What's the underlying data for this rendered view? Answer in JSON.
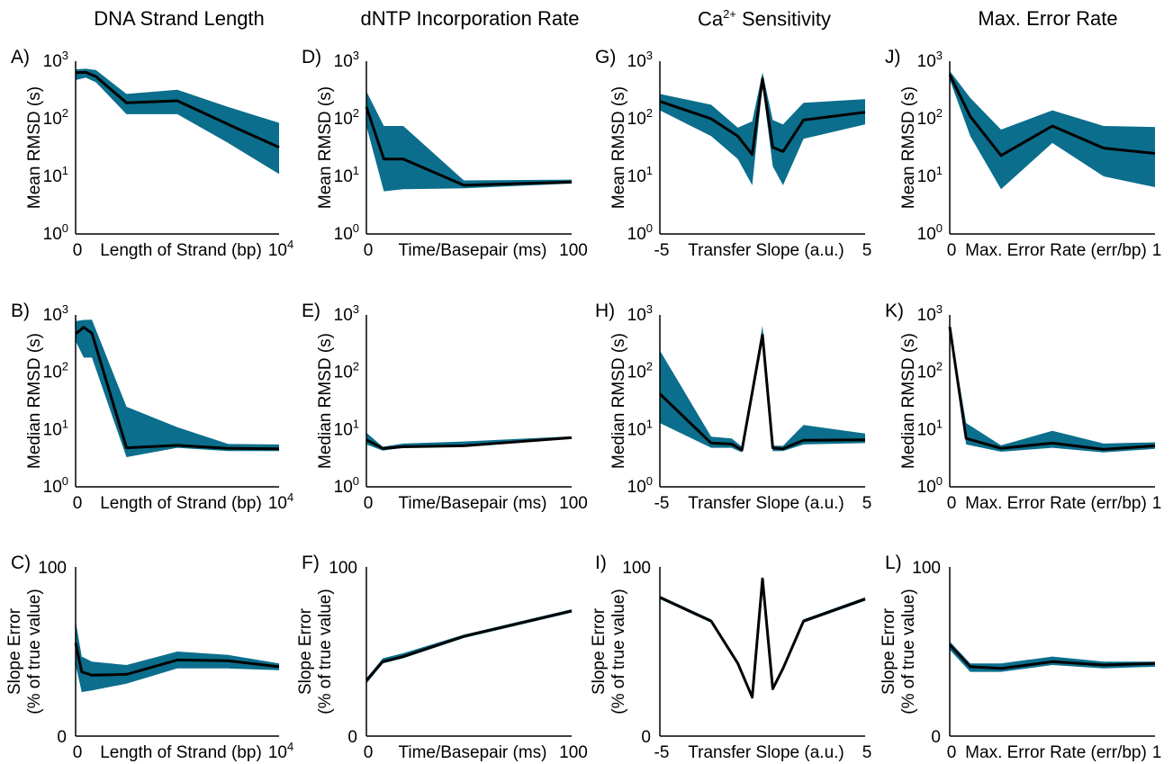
{
  "colors": {
    "band": "#0b6e8c",
    "line": "#000000",
    "axis": "#000000"
  },
  "columns": [
    {
      "title": "DNA Strand Length"
    },
    {
      "title": "dNTP Incorporation Rate"
    },
    {
      "title_main": "Ca",
      "title_sup": "2+",
      "title_rest": " Sensitivity"
    },
    {
      "title": "Max. Error Rate"
    }
  ],
  "chart_data": [
    {
      "panel": "A)",
      "type": "line",
      "xlabel": "Length of Strand (bp)",
      "ylabel": [
        "Mean RMSD (s)"
      ],
      "yscale": "log",
      "ylim": [
        1,
        1000
      ],
      "yticks": [
        "10^0",
        "10^1",
        "10^2",
        "10^3"
      ],
      "xtick_labels": [
        "0",
        "10^4"
      ],
      "xlim": [
        0,
        1
      ],
      "x": [
        0,
        0.05,
        0.1,
        0.25,
        0.5,
        0.75,
        1
      ],
      "y": [
        630,
        640,
        540,
        190,
        205,
        80,
        32
      ],
      "lower": [
        470,
        520,
        430,
        120,
        120,
        38,
        11
      ],
      "upper": [
        720,
        740,
        700,
        270,
        320,
        160,
        85
      ]
    },
    {
      "panel": "D)",
      "type": "line",
      "xlabel": "Time/Basepair (ms)",
      "ylabel": [
        "Mean RMSD (s)"
      ],
      "yscale": "log",
      "ylim": [
        1,
        1000
      ],
      "yticks": [
        "10^0",
        "10^1",
        "10^2",
        "10^3"
      ],
      "xtick_labels": [
        "0",
        "100"
      ],
      "xlim": [
        0,
        100
      ],
      "x": [
        0,
        8.5,
        18,
        47.5,
        100
      ],
      "y": [
        160,
        20,
        20,
        7,
        8
      ],
      "lower": [
        75,
        5.5,
        6,
        6.2,
        7.5
      ],
      "upper": [
        300,
        75,
        75,
        8.5,
        8.8
      ]
    },
    {
      "panel": "G)",
      "type": "line",
      "xlabel": "Transfer Slope (a.u.)",
      "ylabel": [
        "Mean RMSD (s)"
      ],
      "yscale": "log",
      "ylim": [
        1,
        1000
      ],
      "yticks": [
        "10^0",
        "10^1",
        "10^2",
        "10^3"
      ],
      "xtick_labels": [
        "-5",
        "5"
      ],
      "xlim": [
        -5,
        5
      ],
      "x": [
        -5,
        -2.5,
        -1.2,
        -0.5,
        0,
        0.5,
        1,
        2,
        5
      ],
      "y": [
        200,
        100,
        50,
        24,
        500,
        32,
        27,
        95,
        130
      ],
      "lower": [
        140,
        50,
        20,
        7,
        380,
        15,
        7,
        45,
        80
      ],
      "upper": [
        270,
        175,
        70,
        90,
        640,
        95,
        80,
        190,
        220
      ]
    },
    {
      "panel": "J)",
      "type": "line",
      "xlabel": "Max. Error Rate (err/bp)",
      "ylabel": [
        "Mean RMSD (s)"
      ],
      "yscale": "log",
      "ylim": [
        1,
        1000
      ],
      "yticks": [
        "10^0",
        "10^1",
        "10^2",
        "10^3"
      ],
      "xtick_labels": [
        "0",
        "1"
      ],
      "xlim": [
        0,
        1
      ],
      "x": [
        0,
        0.1,
        0.25,
        0.5,
        0.75,
        1
      ],
      "y": [
        580,
        110,
        23,
        75,
        31,
        25
      ],
      "lower": [
        480,
        50,
        6,
        38,
        10,
        6.5
      ],
      "upper": [
        680,
        230,
        65,
        140,
        75,
        72
      ]
    },
    {
      "panel": "B)",
      "type": "line",
      "xlabel": "Length of Strand (bp)",
      "ylabel": [
        "Median RMSD (s)"
      ],
      "yscale": "log",
      "ylim": [
        1,
        1000
      ],
      "yticks": [
        "10^0",
        "10^1",
        "10^2",
        "10^3"
      ],
      "xtick_labels": [
        "0",
        "10^4"
      ],
      "xlim": [
        0,
        1
      ],
      "x": [
        0,
        0.04,
        0.08,
        0.25,
        0.5,
        0.75,
        1
      ],
      "y": [
        470,
        610,
        480,
        4.8,
        5.3,
        4.7,
        4.6
      ],
      "lower": [
        350,
        180,
        180,
        3.3,
        4.8,
        4.2,
        4.2
      ],
      "upper": [
        780,
        820,
        830,
        25,
        11,
        5.6,
        5.5
      ]
    },
    {
      "panel": "E)",
      "type": "line",
      "xlabel": "Time/Basepair (ms)",
      "ylabel": [
        "Median RMSD (s)"
      ],
      "yscale": "log",
      "ylim": [
        1,
        1000
      ],
      "yticks": [
        "10^0",
        "10^1",
        "10^2",
        "10^3"
      ],
      "xtick_labels": [
        "0",
        "100"
      ],
      "xlim": [
        0,
        100
      ],
      "x": [
        0,
        8,
        18,
        47.5,
        100
      ],
      "y": [
        6.6,
        4.7,
        5,
        5.2,
        7.2
      ],
      "lower": [
        5.5,
        4.3,
        4.8,
        5,
        7
      ],
      "upper": [
        8.8,
        5,
        5.7,
        6.2,
        7.6
      ]
    },
    {
      "panel": "H)",
      "type": "line",
      "xlabel": "Transfer Slope (a.u.)",
      "ylabel": [
        "Median RMSD (s)"
      ],
      "yscale": "log",
      "ylim": [
        1,
        1000
      ],
      "yticks": [
        "10^0",
        "10^1",
        "10^2",
        "10^3"
      ],
      "xtick_labels": [
        "-5",
        "5"
      ],
      "xlim": [
        -5,
        5
      ],
      "x": [
        -5,
        -2.5,
        -1.5,
        -1,
        0,
        0.5,
        1,
        2,
        5
      ],
      "y": [
        42,
        5.8,
        5.6,
        4.4,
        450,
        4.8,
        4.6,
        6.5,
        6.6
      ],
      "lower": [
        13,
        4.8,
        4.8,
        4,
        380,
        4.2,
        4.2,
        5.5,
        5.8
      ],
      "upper": [
        240,
        7.5,
        7,
        5,
        650,
        5.2,
        5.2,
        12,
        8.5
      ]
    },
    {
      "panel": "K)",
      "type": "line",
      "xlabel": "Max. Error Rate (err/bp)",
      "ylabel": [
        "Median RMSD (s)"
      ],
      "yscale": "log",
      "ylim": [
        1,
        1000
      ],
      "yticks": [
        "10^0",
        "10^1",
        "10^2",
        "10^3"
      ],
      "xtick_labels": [
        "0",
        "1"
      ],
      "xlim": [
        0,
        1
      ],
      "x": [
        0,
        0.08,
        0.25,
        0.5,
        0.75,
        1
      ],
      "y": [
        620,
        7,
        4.7,
        5.8,
        4.5,
        5.2
      ],
      "lower": [
        600,
        5.5,
        4.1,
        4.8,
        4,
        4.6
      ],
      "upper": [
        640,
        13,
        5.3,
        9.5,
        5.7,
        6
      ]
    },
    {
      "panel": "C)",
      "type": "line",
      "xlabel": "Length of Strand (bp)",
      "ylabel": [
        "Slope Error",
        "(% of true value)"
      ],
      "yscale": "linear",
      "ylim": [
        0,
        100
      ],
      "yticks": [
        "0",
        "100"
      ],
      "xtick_labels": [
        "0",
        "10^4"
      ],
      "xlim": [
        0,
        1
      ],
      "x": [
        0,
        0.03,
        0.08,
        0.25,
        0.5,
        0.75,
        1
      ],
      "y": [
        55,
        38,
        36,
        36.5,
        45,
        44.5,
        41
      ],
      "lower": [
        42,
        26,
        27,
        31,
        40,
        40,
        39
      ],
      "upper": [
        68,
        47,
        44,
        42,
        50,
        48,
        43
      ]
    },
    {
      "panel": "F)",
      "type": "line",
      "xlabel": "Time/Basepair (ms)",
      "ylabel": [
        "Slope Error",
        "(% of true value)"
      ],
      "yscale": "linear",
      "ylim": [
        0,
        100
      ],
      "yticks": [
        "0",
        "100"
      ],
      "xtick_labels": [
        "0",
        "100"
      ],
      "xlim": [
        0,
        100
      ],
      "x": [
        0,
        8,
        18,
        47.5,
        100
      ],
      "y": [
        33,
        44,
        47,
        59,
        74
      ],
      "lower": [
        31,
        43,
        46,
        58,
        73
      ],
      "upper": [
        34,
        46,
        49,
        60,
        75
      ]
    },
    {
      "panel": "I)",
      "type": "line",
      "xlabel": "Transfer Slope (a.u.)",
      "ylabel": [
        "Slope Error",
        "(% of true value)"
      ],
      "yscale": "linear",
      "ylim": [
        0,
        100
      ],
      "yticks": [
        "0",
        "100"
      ],
      "xtick_labels": [
        "-5",
        "5"
      ],
      "xlim": [
        -5,
        5
      ],
      "x": [
        -5,
        -2.5,
        -1.2,
        -0.5,
        0,
        0.5,
        1,
        2,
        5
      ],
      "y": [
        82,
        68,
        43,
        23,
        93,
        28,
        40,
        68,
        81
      ],
      "lower": [
        81,
        67,
        42,
        22,
        92,
        27,
        39,
        67,
        80
      ],
      "upper": [
        83,
        69,
        44,
        24,
        94,
        29,
        41,
        69,
        82
      ]
    },
    {
      "panel": "L)",
      "type": "line",
      "xlabel": "Max. Error Rate (err/bp)",
      "ylabel": [
        "Slope Error",
        "(% of true value)"
      ],
      "yscale": "linear",
      "ylim": [
        0,
        100
      ],
      "yticks": [
        "0",
        "100"
      ],
      "xtick_labels": [
        "0",
        "1"
      ],
      "xlim": [
        0,
        1
      ],
      "x": [
        0,
        0.1,
        0.25,
        0.5,
        0.75,
        1
      ],
      "y": [
        54,
        41,
        40,
        44,
        42,
        43
      ],
      "lower": [
        51,
        38,
        38,
        42,
        40,
        41
      ],
      "upper": [
        56,
        43,
        43,
        47,
        44,
        44
      ]
    }
  ]
}
